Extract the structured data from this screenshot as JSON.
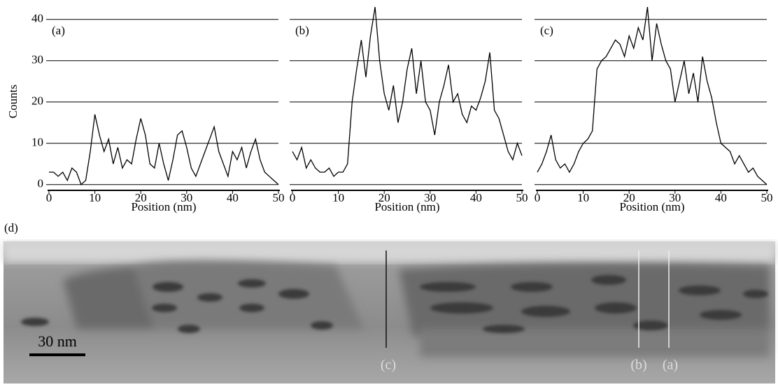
{
  "chart_data": [
    {
      "type": "line",
      "panel_label": "(a)",
      "xlabel": "Position (nm)",
      "ylabel": "Counts",
      "x": [
        0,
        1,
        2,
        3,
        4,
        5,
        6,
        7,
        8,
        9,
        10,
        11,
        12,
        13,
        14,
        15,
        16,
        17,
        18,
        19,
        20,
        21,
        22,
        23,
        24,
        25,
        26,
        27,
        28,
        29,
        30,
        31,
        32,
        33,
        34,
        35,
        36,
        37,
        38,
        39,
        40,
        41,
        42,
        43,
        44,
        45,
        46,
        47,
        48,
        49,
        50
      ],
      "values": [
        3,
        3,
        2,
        3,
        1,
        4,
        3,
        0,
        1,
        8,
        17,
        12,
        8,
        11,
        5,
        9,
        4,
        6,
        5,
        11,
        16,
        12,
        5,
        4,
        10,
        5,
        1,
        6,
        12,
        13,
        9,
        4,
        2,
        5,
        8,
        11,
        14,
        8,
        5,
        2,
        8,
        6,
        9,
        4,
        8,
        11,
        6,
        3,
        2,
        1,
        0
      ],
      "color": "#000000",
      "xlim": [
        0,
        50
      ],
      "ylim": [
        -1.4,
        43
      ],
      "xticks": [
        0,
        10,
        20,
        30,
        40,
        50
      ],
      "yticks": [
        0,
        10,
        20,
        30,
        40
      ],
      "ytick_labels": true,
      "grid": true
    },
    {
      "type": "line",
      "panel_label": "(b)",
      "xlabel": "Position (nm)",
      "x": [
        0,
        1,
        2,
        3,
        4,
        5,
        6,
        7,
        8,
        9,
        10,
        11,
        12,
        13,
        14,
        15,
        16,
        17,
        18,
        19,
        20,
        21,
        22,
        23,
        24,
        25,
        26,
        27,
        28,
        29,
        30,
        31,
        32,
        33,
        34,
        35,
        36,
        37,
        38,
        39,
        40,
        41,
        42,
        43,
        44,
        45,
        46,
        47,
        48,
        49,
        50
      ],
      "values": [
        8,
        6,
        9,
        4,
        6,
        4,
        3,
        3,
        4,
        2,
        3,
        3,
        5,
        20,
        28,
        35,
        26,
        36,
        43,
        30,
        22,
        18,
        24,
        15,
        20,
        28,
        33,
        22,
        30,
        20,
        18,
        12,
        20,
        24,
        29,
        20,
        22,
        17,
        15,
        19,
        18,
        21,
        25,
        32,
        18,
        16,
        12,
        8,
        6,
        10,
        7
      ],
      "color": "#000000",
      "xlim": [
        0,
        50
      ],
      "ylim": [
        -1.4,
        43
      ],
      "xticks": [
        0,
        10,
        20,
        30,
        40,
        50
      ],
      "yticks": [
        0,
        10,
        20,
        30,
        40
      ],
      "ytick_labels": false,
      "grid": true
    },
    {
      "type": "line",
      "panel_label": "(c)",
      "xlabel": "Position (nm)",
      "x": [
        0,
        1,
        2,
        3,
        4,
        5,
        6,
        7,
        8,
        9,
        10,
        11,
        12,
        13,
        14,
        15,
        16,
        17,
        18,
        19,
        20,
        21,
        22,
        23,
        24,
        25,
        26,
        27,
        28,
        29,
        30,
        31,
        32,
        33,
        34,
        35,
        36,
        37,
        38,
        39,
        40,
        41,
        42,
        43,
        44,
        45,
        46,
        47,
        48,
        49,
        50
      ],
      "values": [
        3,
        5,
        8,
        12,
        6,
        4,
        5,
        3,
        5,
        8,
        10,
        11,
        13,
        28,
        30,
        31,
        33,
        35,
        34,
        31,
        36,
        33,
        38,
        35,
        43,
        30,
        39,
        34,
        30,
        28,
        20,
        25,
        30,
        22,
        27,
        20,
        31,
        25,
        21,
        15,
        10,
        9,
        8,
        5,
        7,
        5,
        3,
        4,
        2,
        1,
        0
      ],
      "color": "#000000",
      "xlim": [
        0,
        50
      ],
      "ylim": [
        -1.4,
        43
      ],
      "xticks": [
        0,
        10,
        20,
        30,
        40,
        50
      ],
      "yticks": [
        0,
        10,
        20,
        30,
        40
      ],
      "ytick_labels": false,
      "grid": true
    }
  ],
  "image": {
    "panel_label": "(d)",
    "scale_bar": "30 nm",
    "markers": [
      "(c)",
      "(b)",
      "(a)"
    ]
  }
}
